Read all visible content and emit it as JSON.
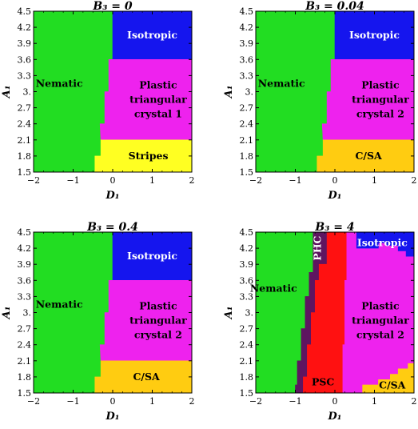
{
  "chart_data": [
    {
      "type": "heatmap",
      "title": "B₃ = 0",
      "xlabel": "D₁",
      "ylabel": "A₁",
      "xlim": [
        -2,
        2
      ],
      "ylim": [
        1.5,
        4.5
      ],
      "xticks": [
        -2,
        -1,
        0,
        1,
        2
      ],
      "yticks": [
        "1.5",
        "1.8",
        "2.1",
        "2.4",
        "2.7",
        "3.",
        "3.3",
        "3.6",
        "3.9",
        "4.2",
        "4.5"
      ],
      "regions": [
        {
          "name": "Nematic",
          "color": "#22dd22",
          "label_at": [
            -1.35,
            3.15
          ],
          "polygon": [
            [
              -2,
              1.5
            ],
            [
              -0.45,
              1.5
            ],
            [
              -0.45,
              1.8
            ],
            [
              -0.3,
              1.8
            ],
            [
              -0.3,
              2.1
            ],
            [
              -0.32,
              2.4
            ],
            [
              -0.2,
              2.4
            ],
            [
              -0.2,
              2.7
            ],
            [
              -0.2,
              3.0
            ],
            [
              -0.1,
              3.0
            ],
            [
              -0.1,
              3.3
            ],
            [
              -0.1,
              3.6
            ],
            [
              0,
              3.6
            ],
            [
              0,
              4.5
            ],
            [
              -2,
              4.5
            ]
          ]
        },
        {
          "name": "Isotropic",
          "color": "#1515ee",
          "label_at": [
            1.0,
            4.05
          ],
          "polygon": [
            [
              0,
              3.6
            ],
            [
              2,
              3.6
            ],
            [
              2,
              4.5
            ],
            [
              0,
              4.5
            ]
          ]
        },
        {
          "name": "Plastic triangular crystal 1",
          "color": "#ee22ee",
          "lines": [
            "Plastic",
            "triangular",
            "crystal 1"
          ],
          "label_at": [
            1.15,
            2.85
          ],
          "polygon": [
            [
              -0.3,
              2.1
            ],
            [
              2,
              2.1
            ],
            [
              2,
              3.6
            ],
            [
              -0.1,
              3.6
            ],
            [
              -0.1,
              3.0
            ],
            [
              -0.2,
              3.0
            ],
            [
              -0.2,
              2.4
            ],
            [
              -0.32,
              2.4
            ]
          ]
        },
        {
          "name": "Stripes",
          "color": "#ffff22",
          "label_at": [
            0.9,
            1.8
          ],
          "polygon": [
            [
              -0.45,
              1.5
            ],
            [
              2,
              1.5
            ],
            [
              2,
              2.1
            ],
            [
              -0.3,
              2.1
            ],
            [
              -0.3,
              1.8
            ],
            [
              -0.45,
              1.8
            ]
          ]
        }
      ]
    },
    {
      "type": "heatmap",
      "title": "B₃ = 0.04",
      "xlabel": "D₁",
      "ylabel": "A₁",
      "xlim": [
        -2,
        2
      ],
      "ylim": [
        1.5,
        4.5
      ],
      "xticks": [
        -2,
        -1,
        0,
        1,
        2
      ],
      "yticks": [
        "1.5",
        "1.8",
        "2.1",
        "2.4",
        "2.7",
        "3.",
        "3.3",
        "3.6",
        "3.9",
        "4.2",
        "4.5"
      ],
      "regions": [
        {
          "name": "Nematic",
          "color": "#22dd22",
          "label_at": [
            -1.35,
            3.15
          ],
          "polygon": [
            [
              -2,
              1.5
            ],
            [
              -0.45,
              1.5
            ],
            [
              -0.45,
              1.8
            ],
            [
              -0.3,
              1.8
            ],
            [
              -0.3,
              2.1
            ],
            [
              -0.32,
              2.4
            ],
            [
              -0.2,
              2.4
            ],
            [
              -0.2,
              2.7
            ],
            [
              -0.2,
              3.0
            ],
            [
              -0.1,
              3.0
            ],
            [
              -0.1,
              3.3
            ],
            [
              -0.1,
              3.6
            ],
            [
              0,
              3.6
            ],
            [
              0,
              4.5
            ],
            [
              -2,
              4.5
            ]
          ]
        },
        {
          "name": "Isotropic",
          "color": "#1515ee",
          "label_at": [
            1.0,
            4.05
          ],
          "polygon": [
            [
              0,
              3.6
            ],
            [
              2,
              3.6
            ],
            [
              2,
              4.5
            ],
            [
              0,
              4.5
            ]
          ]
        },
        {
          "name": "Plastic triangular crystal 2",
          "color": "#ee22ee",
          "lines": [
            "Plastic",
            "triangular",
            "crystal 2"
          ],
          "label_at": [
            1.15,
            2.85
          ],
          "polygon": [
            [
              -0.3,
              2.1
            ],
            [
              2,
              2.1
            ],
            [
              2,
              3.6
            ],
            [
              -0.1,
              3.6
            ],
            [
              -0.1,
              3.0
            ],
            [
              -0.2,
              3.0
            ],
            [
              -0.2,
              2.4
            ],
            [
              -0.32,
              2.4
            ]
          ]
        },
        {
          "name": "C/SA",
          "color": "#ffcc11",
          "label_at": [
            0.85,
            1.8
          ],
          "polygon": [
            [
              -0.45,
              1.5
            ],
            [
              2,
              1.5
            ],
            [
              2,
              2.1
            ],
            [
              -0.3,
              2.1
            ],
            [
              -0.3,
              1.8
            ],
            [
              -0.45,
              1.8
            ]
          ]
        }
      ]
    },
    {
      "type": "heatmap",
      "title": "B₃ = 0.4",
      "xlabel": "D₁",
      "ylabel": "A₁",
      "xlim": [
        -2,
        2
      ],
      "ylim": [
        1.5,
        4.5
      ],
      "xticks": [
        -2,
        -1,
        0,
        1,
        2
      ],
      "yticks": [
        "1.5",
        "1.8",
        "2.1",
        "2.4",
        "2.7",
        "3.",
        "3.3",
        "3.6",
        "3.9",
        "4.2",
        "4.5"
      ],
      "regions": [
        {
          "name": "Nematic",
          "color": "#22dd22",
          "label_at": [
            -1.35,
            3.15
          ],
          "polygon": [
            [
              -2,
              1.5
            ],
            [
              -0.45,
              1.5
            ],
            [
              -0.45,
              1.8
            ],
            [
              -0.3,
              1.8
            ],
            [
              -0.3,
              2.1
            ],
            [
              -0.32,
              2.4
            ],
            [
              -0.2,
              2.4
            ],
            [
              -0.2,
              2.7
            ],
            [
              -0.2,
              3.0
            ],
            [
              -0.1,
              3.0
            ],
            [
              -0.1,
              3.3
            ],
            [
              -0.1,
              3.6
            ],
            [
              0,
              3.6
            ],
            [
              0,
              4.5
            ],
            [
              -2,
              4.5
            ]
          ]
        },
        {
          "name": "Isotropic",
          "color": "#1515ee",
          "label_at": [
            1.0,
            4.05
          ],
          "polygon": [
            [
              0,
              3.6
            ],
            [
              2,
              3.6
            ],
            [
              2,
              4.5
            ],
            [
              0,
              4.5
            ]
          ]
        },
        {
          "name": "Plastic triangular crystal 2",
          "color": "#ee22ee",
          "lines": [
            "Plastic",
            "triangular",
            "crystal 2"
          ],
          "label_at": [
            1.15,
            2.85
          ],
          "polygon": [
            [
              -0.3,
              2.1
            ],
            [
              2,
              2.1
            ],
            [
              2,
              3.6
            ],
            [
              -0.1,
              3.6
            ],
            [
              -0.1,
              3.0
            ],
            [
              -0.2,
              3.0
            ],
            [
              -0.2,
              2.4
            ],
            [
              -0.32,
              2.4
            ]
          ]
        },
        {
          "name": "C/SA",
          "color": "#ffcc11",
          "label_at": [
            0.85,
            1.8
          ],
          "polygon": [
            [
              -0.45,
              1.5
            ],
            [
              2,
              1.5
            ],
            [
              2,
              2.1
            ],
            [
              -0.3,
              2.1
            ],
            [
              -0.3,
              1.8
            ],
            [
              -0.45,
              1.8
            ]
          ]
        }
      ]
    },
    {
      "type": "heatmap",
      "title": "B₃ = 4",
      "xlabel": "D₁",
      "ylabel": "A₁",
      "xlim": [
        -2,
        2
      ],
      "ylim": [
        1.5,
        4.5
      ],
      "xticks": [
        -2,
        -1,
        0,
        1,
        2
      ],
      "yticks": [
        "1.5",
        "1.8",
        "2.1",
        "2.4",
        "2.7",
        "3.",
        "3.3",
        "3.6",
        "3.9",
        "4.2",
        "4.5"
      ],
      "regions": [
        {
          "name": "Nematic",
          "color": "#22dd22",
          "label_at": [
            -1.55,
            3.45
          ],
          "polygon": [
            [
              -2,
              1.5
            ],
            [
              -1.0,
              1.5
            ],
            [
              -1.0,
              1.65
            ],
            [
              -0.95,
              1.65
            ],
            [
              -0.95,
              2.1
            ],
            [
              -0.85,
              2.1
            ],
            [
              -0.85,
              2.7
            ],
            [
              -0.75,
              2.7
            ],
            [
              -0.75,
              3.3
            ],
            [
              -0.65,
              3.3
            ],
            [
              -0.65,
              3.75
            ],
            [
              -0.55,
              3.75
            ],
            [
              -0.55,
              4.5
            ],
            [
              -2,
              4.5
            ]
          ]
        },
        {
          "name": "PHC",
          "color": "#5e1560",
          "vertical": true,
          "label_at": [
            -0.35,
            4.2
          ],
          "polygon": [
            [
              -1.0,
              1.5
            ],
            [
              -0.8,
              1.5
            ],
            [
              -0.8,
              1.8
            ],
            [
              -0.7,
              1.8
            ],
            [
              -0.7,
              2.4
            ],
            [
              -0.6,
              2.4
            ],
            [
              -0.6,
              3.0
            ],
            [
              -0.5,
              3.0
            ],
            [
              -0.5,
              3.6
            ],
            [
              -0.4,
              3.6
            ],
            [
              -0.4,
              3.9
            ],
            [
              -0.2,
              3.9
            ],
            [
              -0.2,
              4.5
            ],
            [
              -0.55,
              4.5
            ],
            [
              -0.55,
              3.75
            ],
            [
              -0.65,
              3.75
            ],
            [
              -0.65,
              3.3
            ],
            [
              -0.75,
              3.3
            ],
            [
              -0.75,
              2.7
            ],
            [
              -0.85,
              2.7
            ],
            [
              -0.85,
              2.1
            ],
            [
              -0.95,
              2.1
            ],
            [
              -0.95,
              1.65
            ],
            [
              -1.0,
              1.65
            ]
          ]
        },
        {
          "name": "PSC",
          "color": "#ff1111",
          "label_at": [
            -0.3,
            1.7
          ],
          "polygon": [
            [
              -0.8,
              1.5
            ],
            [
              0.2,
              1.5
            ],
            [
              0.2,
              2.4
            ],
            [
              0.25,
              2.4
            ],
            [
              0.25,
              3.6
            ],
            [
              0.3,
              3.6
            ],
            [
              0.3,
              4.5
            ],
            [
              -0.2,
              4.5
            ],
            [
              -0.2,
              3.9
            ],
            [
              -0.4,
              3.9
            ],
            [
              -0.4,
              3.6
            ],
            [
              -0.5,
              3.6
            ],
            [
              -0.5,
              3.0
            ],
            [
              -0.6,
              3.0
            ],
            [
              -0.6,
              2.4
            ],
            [
              -0.7,
              2.4
            ],
            [
              -0.7,
              1.8
            ],
            [
              -0.8,
              1.8
            ]
          ]
        },
        {
          "name": "Plastic triangular crystal 2",
          "color": "#ee22ee",
          "lines": [
            "Plastic",
            "triangular",
            "crystal 2"
          ],
          "label_at": [
            1.15,
            2.85
          ],
          "polygon": [
            [
              0.2,
              1.5
            ],
            [
              0.7,
              1.5
            ],
            [
              0.7,
              1.65
            ],
            [
              1.1,
              1.65
            ],
            [
              1.1,
              1.75
            ],
            [
              1.4,
              1.75
            ],
            [
              1.4,
              1.85
            ],
            [
              1.6,
              1.85
            ],
            [
              1.6,
              1.95
            ],
            [
              1.85,
              1.95
            ],
            [
              1.85,
              2.05
            ],
            [
              2,
              2.05
            ],
            [
              2,
              4.05
            ],
            [
              1.8,
              4.05
            ],
            [
              1.8,
              4.15
            ],
            [
              1.6,
              4.15
            ],
            [
              1.6,
              4.25
            ],
            [
              1.3,
              4.25
            ],
            [
              1.3,
              4.3
            ],
            [
              1.1,
              4.3
            ],
            [
              1.1,
              4.2
            ],
            [
              0.55,
              4.2
            ],
            [
              0.55,
              4.5
            ],
            [
              0.3,
              4.5
            ],
            [
              0.3,
              3.6
            ],
            [
              0.25,
              3.6
            ],
            [
              0.25,
              2.4
            ],
            [
              0.2,
              2.4
            ]
          ]
        },
        {
          "name": "Isotropic",
          "color": "#1515ee",
          "label_at": [
            1.2,
            4.3
          ],
          "polygon": [
            [
              0.55,
              4.5
            ],
            [
              2,
              4.5
            ],
            [
              2,
              4.05
            ],
            [
              1.8,
              4.05
            ],
            [
              1.8,
              4.15
            ],
            [
              1.6,
              4.15
            ],
            [
              1.6,
              4.25
            ],
            [
              1.3,
              4.25
            ],
            [
              1.3,
              4.3
            ],
            [
              1.1,
              4.3
            ],
            [
              1.1,
              4.2
            ],
            [
              0.55,
              4.2
            ]
          ]
        },
        {
          "name": "C/SA",
          "color": "#ffcc11",
          "label_at": [
            1.45,
            1.64
          ],
          "polygon": [
            [
              0.7,
              1.5
            ],
            [
              2,
              1.5
            ],
            [
              2,
              2.05
            ],
            [
              1.85,
              2.05
            ],
            [
              1.85,
              1.95
            ],
            [
              1.6,
              1.95
            ],
            [
              1.6,
              1.85
            ],
            [
              1.4,
              1.85
            ],
            [
              1.4,
              1.75
            ],
            [
              1.1,
              1.75
            ],
            [
              1.1,
              1.65
            ],
            [
              0.7,
              1.65
            ]
          ]
        }
      ]
    }
  ]
}
